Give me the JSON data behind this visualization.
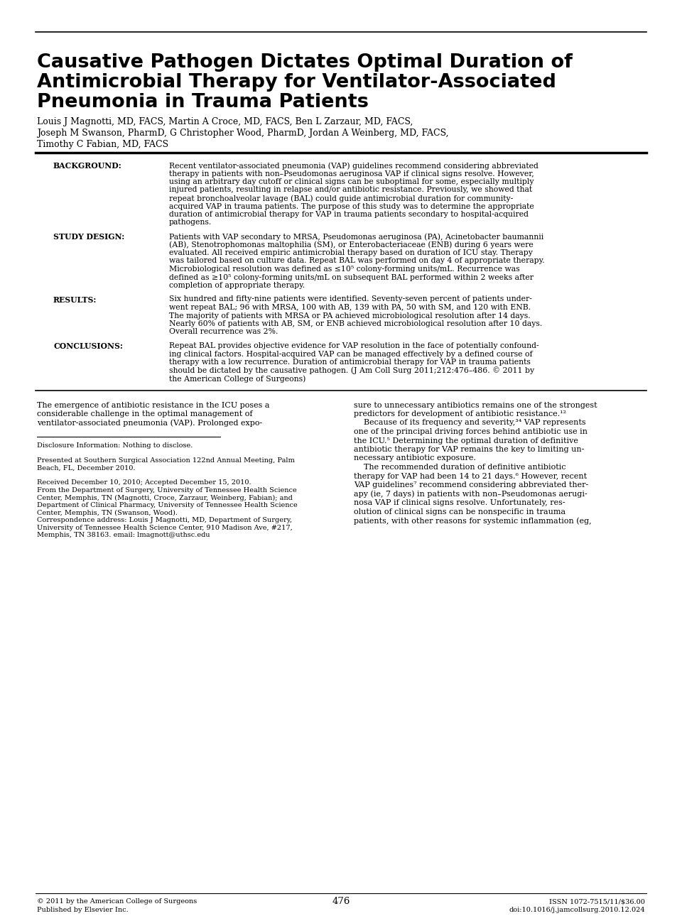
{
  "title_line1": "Causative Pathogen Dictates Optimal Duration of",
  "title_line2": "Antimicrobial Therapy for Ventilator-Associated",
  "title_line3": "Pneumonia in Trauma Patients",
  "authors_line1": "Louis J Magnotti, MD, FACS, Martin A Croce, MD, FACS, Ben L Zarzaur, MD, FACS,",
  "authors_line2": "Joseph M Swanson, PharmD, G Christopher Wood, PharmD, Jordan A Weinberg, MD, FACS,",
  "authors_line3": "Timothy C Fabian, MD, FACS",
  "bg_label": "BACKGROUND:",
  "bg_text_lines": [
    "Recent ventilator-associated pneumonia (VAP) guidelines recommend considering abbreviated",
    "therapy in patients with non–Pseudomonas aeruginosa VAP if clinical signs resolve. However,",
    "using an arbitrary day cutoff or clinical signs can be suboptimal for some, especially multiply",
    "injured patients, resulting in relapse and/or antibiotic resistance. Previously, we showed that",
    "repeat bronchoalveolar lavage (BAL) could guide antimicrobial duration for community-",
    "acquired VAP in trauma patients. The purpose of this study was to determine the appropriate",
    "duration of antimicrobial therapy for VAP in trauma patients secondary to hospital-acquired",
    "pathogens."
  ],
  "sd_label": "STUDY DESIGN:",
  "sd_text_lines": [
    "Patients with VAP secondary to MRSA, Pseudomonas aeruginosa (PA), Acinetobacter baumannii",
    "(AB), Stenotrophomonas maltophilia (SM), or Enterobacteriaceae (ENB) during 6 years were",
    "evaluated. All received empiric antimicrobial therapy based on duration of ICU stay. Therapy",
    "was tailored based on culture data. Repeat BAL was performed on day 4 of appropriate therapy.",
    "Microbiological resolution was defined as ≤10⁵ colony-forming units/mL. Recurrence was",
    "defined as ≥10⁵ colony-forming units/mL on subsequent BAL performed within 2 weeks after",
    "completion of appropriate therapy."
  ],
  "re_label": "RESULTS:",
  "re_text_lines": [
    "Six hundred and fifty-nine patients were identified. Seventy-seven percent of patients under-",
    "went repeat BAL; 96 with MRSA, 100 with AB, 139 with PA, 50 with SM, and 120 with ENB.",
    "The majority of patients with MRSA or PA achieved microbiological resolution after 14 days.",
    "Nearly 60% of patients with AB, SM, or ENB achieved microbiological resolution after 10 days.",
    "Overall recurrence was 2%."
  ],
  "co_label": "CONCLUSIONS:",
  "co_text_lines": [
    "Repeat BAL provides objective evidence for VAP resolution in the face of potentially confound-",
    "ing clinical factors. Hospital-acquired VAP can be managed effectively by a defined course of",
    "therapy with a low recurrence. Duration of antimicrobial therapy for VAP in trauma patients",
    "should be dictated by the causative pathogen. (J Am Coll Surg 2011;212:476–486. © 2011 by",
    "the American College of Surgeons)"
  ],
  "body_col1_lines": [
    "The emergence of antibiotic resistance in the ICU poses a",
    "considerable challenge in the optimal management of",
    "ventilator-associated pneumonia (VAP). Prolonged expo-"
  ],
  "body_col2_lines": [
    "sure to unnecessary antibiotics remains one of the strongest",
    "predictors for development of antibiotic resistance.¹²",
    "    Because of its frequency and severity,³⁴ VAP represents",
    "one of the principal driving forces behind antibiotic use in",
    "the ICU.⁵ Determining the optimal duration of definitive",
    "antibiotic therapy for VAP remains the key to limiting un-",
    "necessary antibiotic exposure.",
    "    The recommended duration of definitive antibiotic",
    "therapy for VAP had been 14 to 21 days.⁶ However, recent",
    "VAP guidelines⁷ recommend considering abbreviated ther-",
    "apy (ie, 7 days) in patients with non–Pseudomonas aerugi-",
    "nosa VAP if clinical signs resolve. Unfortunately, res-",
    "olution of clinical signs can be nonspecific in trauma",
    "patients, with other reasons for systemic inflammation (eg,"
  ],
  "footnote_lines": [
    "Disclosure Information: Nothing to disclose.",
    "",
    "Presented at Southern Surgical Association 122nd Annual Meeting, Palm",
    "Beach, FL, December 2010.",
    "",
    "Received December 10, 2010; Accepted December 15, 2010.",
    "From the Department of Surgery, University of Tennessee Health Science",
    "Center, Memphis, TN (Magnotti, Croce, Zarzaur, Weinberg, Fabian); and",
    "Department of Clinical Pharmacy, University of Tennessee Health Science",
    "Center, Memphis, TN (Swanson, Wood).",
    "Correspondence address: Louis J Magnotti, MD, Department of Surgery,",
    "University of Tennessee Health Science Center, 910 Madison Ave, #217,",
    "Memphis, TN 38163. email: lmagnott@uthsc.edu"
  ],
  "footer_left": "© 2011 by the American College of Surgeons\nPublished by Elsevier Inc.",
  "footer_center": "476",
  "footer_right": "ISSN 1072-7515/11/$36.00\ndoi:10.1016/j.jamcollsurg.2010.12.024",
  "background_color": "#ffffff",
  "text_color": "#000000"
}
